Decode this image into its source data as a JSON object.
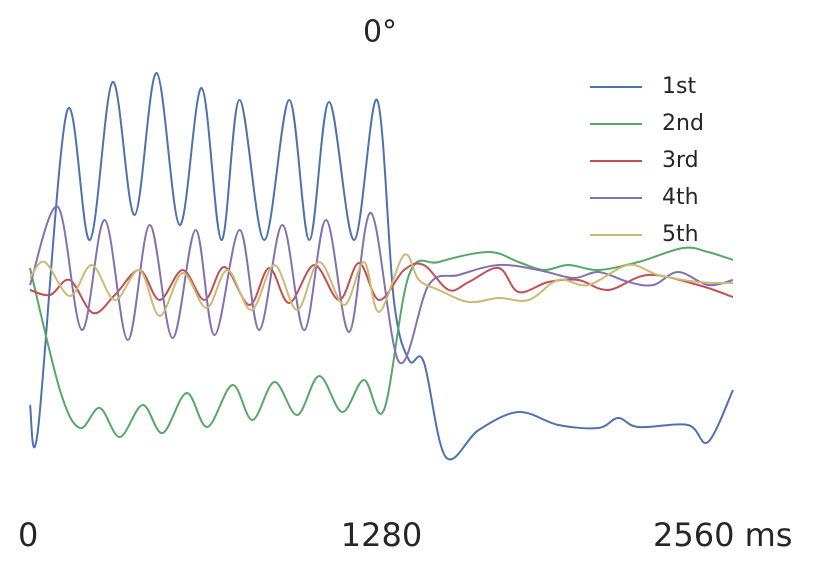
{
  "chart_data": {
    "type": "line",
    "title": "0°",
    "xlim": [
      0,
      2560
    ],
    "xticks": [
      0,
      1280,
      {
        "value": 2560,
        "label": "2560 ms"
      }
    ],
    "ylim": [
      -195,
      225
    ],
    "legend": "upper right",
    "series": [
      {
        "name": "1st",
        "color": "#4c72b0",
        "x": [
          0,
          29,
          134,
          218,
          301,
          381,
          461,
          545,
          625,
          697,
          763,
          853,
          944,
          1017,
          1089,
          1180,
          1264,
          1325,
          1380,
          1434,
          1514,
          1634,
          1779,
          1924,
          2070,
          2142,
          2215,
          2396,
          2469,
          2560
        ],
        "values": [
          -120,
          -145,
          173,
          45,
          203,
          70,
          212,
          60,
          197,
          45,
          185,
          45,
          185,
          45,
          183,
          45,
          185,
          -15,
          -75,
          -77,
          -172,
          -145,
          -127,
          -140,
          -143,
          -133,
          -142,
          -140,
          -157,
          -105
        ]
      },
      {
        "name": "2nd",
        "color": "#55a868",
        "x": [
          0,
          109,
          181,
          254,
          327,
          410,
          483,
          570,
          646,
          737,
          810,
          890,
          973,
          1053,
          1137,
          1216,
          1289,
          1380,
          1489,
          1670,
          1779,
          1870,
          1961,
          2070,
          2215,
          2378,
          2469,
          2560
        ],
        "values": [
          17,
          -105,
          -143,
          -123,
          -152,
          -120,
          -148,
          -108,
          -142,
          -100,
          -135,
          -97,
          -130,
          -91,
          -127,
          -95,
          -125,
          10,
          23,
          33,
          23,
          15,
          20,
          15,
          23,
          37,
          33,
          25
        ]
      },
      {
        "name": "3rd",
        "color": "#c44e52",
        "x": [
          0,
          73,
          145,
          229,
          309,
          399,
          472,
          556,
          636,
          708,
          799,
          871,
          944,
          1035,
          1126,
          1198,
          1271,
          1362,
          1434,
          1525,
          1598,
          1707,
          1779,
          1888,
          1997,
          2106,
          2251,
          2433,
          2560
        ],
        "values": [
          -5,
          -10,
          5,
          -28,
          -10,
          15,
          -15,
          15,
          -15,
          18,
          -20,
          17,
          -18,
          20,
          -15,
          22,
          -15,
          15,
          20,
          -5,
          3,
          17,
          -7,
          3,
          5,
          -5,
          10,
          0,
          -12
        ]
      },
      {
        "name": "4th",
        "color": "#8172b2",
        "x": [
          0,
          102,
          189,
          272,
          356,
          436,
          519,
          603,
          672,
          763,
          835,
          919,
          999,
          1078,
          1162,
          1242,
          1344,
          1452,
          1561,
          1707,
          1852,
          1979,
          2070,
          2179,
          2270,
          2360,
          2469,
          2560
        ],
        "values": [
          0,
          78,
          -45,
          65,
          -55,
          60,
          -53,
          55,
          -50,
          55,
          -45,
          60,
          -45,
          65,
          -47,
          72,
          -77,
          0,
          10,
          20,
          15,
          7,
          13,
          3,
          0,
          13,
          0,
          5
        ]
      },
      {
        "name": "5th",
        "color": "#ccb974",
        "x": [
          0,
          54,
          145,
          225,
          309,
          399,
          472,
          556,
          643,
          719,
          806,
          890,
          973,
          1053,
          1144,
          1216,
          1271,
          1362,
          1416,
          1489,
          1598,
          1707,
          1816,
          1924,
          2033,
          2179,
          2287,
          2433,
          2560
        ],
        "values": [
          7,
          23,
          -11,
          20,
          -15,
          15,
          -31,
          12,
          -23,
          15,
          -25,
          20,
          -25,
          23,
          -20,
          23,
          -27,
          30,
          5,
          -5,
          -17,
          -13,
          -15,
          5,
          0,
          20,
          10,
          3,
          2
        ]
      }
    ]
  }
}
